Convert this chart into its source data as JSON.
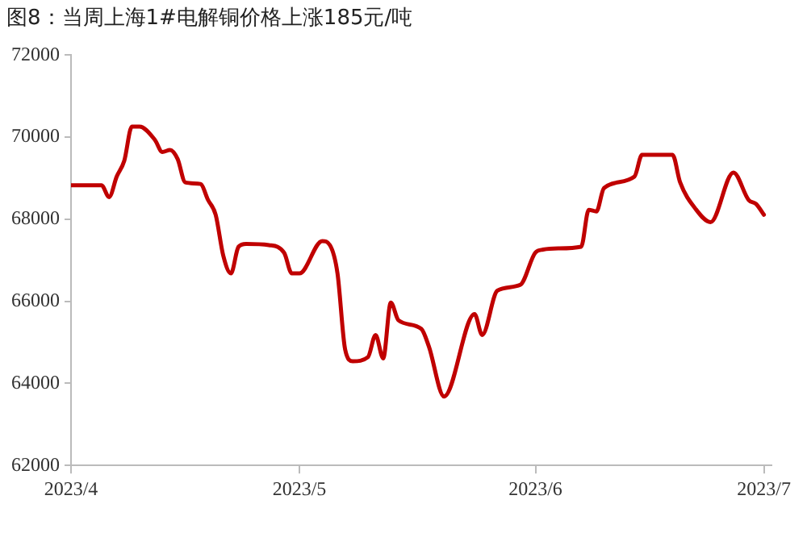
{
  "chart_data": {
    "type": "line",
    "title": "图8：当周上海1#电解铜价格上涨185元/吨",
    "x": [
      "2023-04-01",
      "2023-04-05",
      "2023-04-06",
      "2023-04-07",
      "2023-04-08",
      "2023-04-09",
      "2023-04-10",
      "2023-04-12",
      "2023-04-13",
      "2023-04-14",
      "2023-04-15",
      "2023-04-16",
      "2023-04-18",
      "2023-04-19",
      "2023-04-20",
      "2023-04-21",
      "2023-04-22",
      "2023-04-23",
      "2023-04-24",
      "2023-04-27",
      "2023-04-29",
      "2023-04-30",
      "2023-05-01",
      "2023-05-04",
      "2023-05-05",
      "2023-05-06",
      "2023-05-07",
      "2023-05-08",
      "2023-05-10",
      "2023-05-11",
      "2023-05-12",
      "2023-05-13",
      "2023-05-14",
      "2023-05-17",
      "2023-05-18",
      "2023-05-20",
      "2023-05-24",
      "2023-05-25",
      "2023-05-27",
      "2023-05-30",
      "2023-06-01",
      "2023-06-02",
      "2023-06-04",
      "2023-06-07",
      "2023-06-08",
      "2023-06-09",
      "2023-06-10",
      "2023-06-14",
      "2023-06-15",
      "2023-06-19",
      "2023-06-20",
      "2023-06-22",
      "2023-06-24",
      "2023-06-27",
      "2023-06-29",
      "2023-06-30",
      "2023-07-01"
    ],
    "series": [
      {
        "color": "#c00000",
        "values": [
          68830,
          68830,
          68540,
          69040,
          69430,
          70260,
          70260,
          69940,
          69640,
          69690,
          69470,
          68900,
          68860,
          68470,
          68110,
          67110,
          66680,
          67330,
          67400,
          67370,
          67180,
          66680,
          66680,
          67470,
          67370,
          66680,
          64830,
          64540,
          64640,
          65180,
          64610,
          65970,
          65540,
          65330,
          64900,
          63680,
          65690,
          65180,
          66260,
          66400,
          67190,
          67260,
          67290,
          67330,
          68230,
          68190,
          68760,
          69040,
          69570,
          69570,
          68900,
          68260,
          67930,
          69140,
          68470,
          68370,
          68110
        ]
      }
    ],
    "xlim": [
      "2023-04-01",
      "2023-07-02"
    ],
    "xticks": [
      {
        "value": "2023-04-01",
        "label": "2023/4"
      },
      {
        "value": "2023-05-01",
        "label": "2023/5"
      },
      {
        "value": "2023-06-01",
        "label": "2023/6"
      },
      {
        "value": "2023-07-01",
        "label": "2023/7"
      }
    ],
    "ylim": [
      62000,
      72000
    ],
    "yticks": [
      62000,
      64000,
      66000,
      68000,
      70000,
      72000
    ],
    "grid": false,
    "legend": false,
    "marker": "none",
    "line_style": "solid"
  }
}
